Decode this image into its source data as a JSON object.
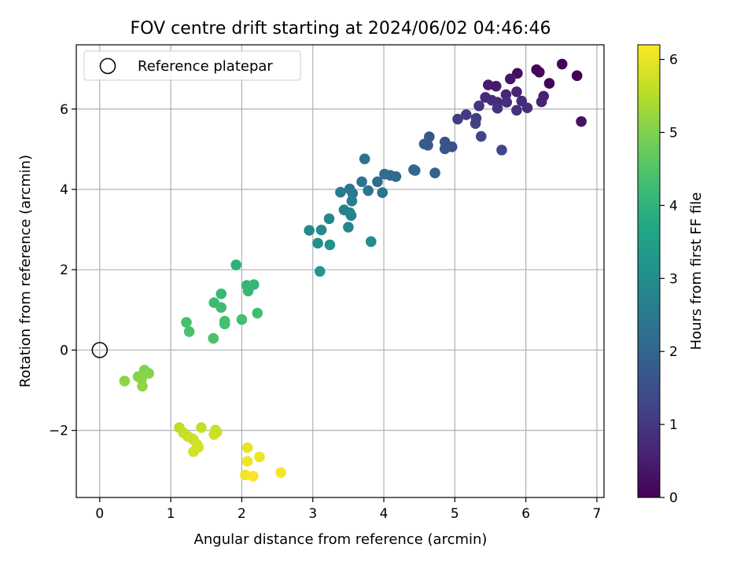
{
  "chart_data": {
    "type": "scatter",
    "title": "FOV centre drift starting at 2024/06/02 04:46:46",
    "xlabel": "Angular distance from reference (arcmin)",
    "ylabel": "Rotation from reference (arcmin)",
    "xlim": [
      -0.33,
      7.1
    ],
    "ylim": [
      -3.67,
      7.6
    ],
    "xticks": [
      0,
      1,
      2,
      3,
      4,
      5,
      6,
      7
    ],
    "yticks": [
      -2,
      0,
      2,
      4,
      6
    ],
    "ytick_labels": [
      "−2",
      "0",
      "2",
      "4",
      "6"
    ],
    "grid": true,
    "legend": {
      "placement": "top-left",
      "label": "Reference platepar"
    },
    "reference_point": {
      "x": 0,
      "y": 0
    },
    "colorbar": {
      "label": "Hours from first FF file",
      "range": [
        0,
        6.2
      ],
      "ticks": [
        0,
        1,
        2,
        3,
        4,
        5,
        6
      ],
      "colormap": "viridis"
    },
    "points": [
      [
        6.72,
        6.83,
        0.0
      ],
      [
        6.51,
        7.12,
        0.03
      ],
      [
        6.33,
        6.64,
        0.05
      ],
      [
        6.15,
        6.98,
        0.1
      ],
      [
        6.19,
        6.92,
        0.12
      ],
      [
        5.88,
        6.89,
        0.2
      ],
      [
        6.78,
        5.69,
        0.3
      ],
      [
        5.78,
        6.75,
        0.38
      ],
      [
        5.47,
        6.6,
        0.5
      ],
      [
        5.58,
        6.57,
        0.45
      ],
      [
        6.25,
        6.32,
        0.55
      ],
      [
        6.22,
        6.18,
        0.6
      ],
      [
        5.87,
        6.43,
        0.62
      ],
      [
        5.72,
        6.36,
        0.66
      ],
      [
        5.43,
        6.29,
        0.72
      ],
      [
        5.52,
        6.22,
        0.75
      ],
      [
        5.6,
        6.17,
        0.8
      ],
      [
        5.73,
        6.17,
        0.82
      ],
      [
        5.94,
        6.2,
        0.78
      ],
      [
        6.02,
        6.03,
        0.85
      ],
      [
        5.87,
        5.97,
        0.88
      ],
      [
        5.6,
        6.02,
        0.9
      ],
      [
        5.34,
        6.08,
        0.95
      ],
      [
        5.16,
        5.86,
        1.08
      ],
      [
        5.04,
        5.75,
        1.1
      ],
      [
        5.3,
        5.77,
        1.15
      ],
      [
        5.29,
        5.64,
        1.2
      ],
      [
        5.37,
        5.32,
        1.25
      ],
      [
        5.66,
        4.98,
        1.3
      ],
      [
        4.96,
        5.06,
        1.5
      ],
      [
        4.86,
        5.18,
        1.55
      ],
      [
        4.86,
        5.01,
        1.6
      ],
      [
        4.64,
        5.31,
        1.7
      ],
      [
        4.57,
        5.13,
        1.75
      ],
      [
        4.62,
        5.1,
        1.78
      ],
      [
        4.72,
        4.41,
        1.9
      ],
      [
        4.44,
        4.47,
        2.0
      ],
      [
        4.42,
        4.49,
        2.05
      ],
      [
        4.17,
        4.32,
        2.12
      ],
      [
        4.09,
        4.35,
        2.15
      ],
      [
        4.01,
        4.38,
        2.18
      ],
      [
        3.91,
        4.19,
        2.25
      ],
      [
        3.73,
        4.76,
        2.3
      ],
      [
        3.69,
        4.19,
        2.32
      ],
      [
        3.98,
        3.92,
        2.35
      ],
      [
        3.78,
        3.97,
        2.4
      ],
      [
        3.52,
        4.01,
        2.45
      ],
      [
        3.56,
        3.9,
        2.5
      ],
      [
        3.39,
        3.93,
        2.55
      ],
      [
        3.55,
        3.71,
        2.6
      ],
      [
        3.44,
        3.49,
        2.65
      ],
      [
        3.52,
        3.42,
        2.68
      ],
      [
        3.54,
        3.35,
        2.72
      ],
      [
        3.23,
        3.27,
        2.8
      ],
      [
        3.5,
        3.06,
        2.85
      ],
      [
        2.95,
        2.98,
        2.9
      ],
      [
        3.12,
        2.99,
        2.95
      ],
      [
        3.82,
        2.7,
        3.0
      ],
      [
        3.07,
        2.66,
        3.05
      ],
      [
        3.24,
        2.62,
        3.1
      ],
      [
        3.1,
        1.96,
        3.25
      ],
      [
        1.92,
        2.12,
        3.95
      ],
      [
        2.07,
        1.61,
        4.05
      ],
      [
        2.17,
        1.63,
        4.1
      ],
      [
        2.09,
        1.47,
        4.12
      ],
      [
        1.71,
        1.4,
        4.15
      ],
      [
        1.61,
        1.18,
        4.2
      ],
      [
        1.71,
        1.06,
        4.25
      ],
      [
        2.22,
        0.92,
        4.28
      ],
      [
        2.0,
        0.76,
        4.3
      ],
      [
        1.76,
        0.72,
        4.32
      ],
      [
        1.76,
        0.65,
        4.35
      ],
      [
        1.22,
        0.69,
        4.38
      ],
      [
        1.26,
        0.46,
        4.4
      ],
      [
        1.6,
        0.29,
        4.45
      ],
      [
        0.63,
        -0.5,
        5.0
      ],
      [
        0.66,
        -0.55,
        5.02
      ],
      [
        0.69,
        -0.58,
        5.05
      ],
      [
        0.54,
        -0.66,
        5.08
      ],
      [
        0.59,
        -0.72,
        5.1
      ],
      [
        0.35,
        -0.77,
        5.12
      ],
      [
        0.6,
        -0.9,
        5.15
      ],
      [
        1.12,
        -1.93,
        5.6
      ],
      [
        1.18,
        -2.06,
        5.62
      ],
      [
        1.43,
        -1.93,
        5.65
      ],
      [
        1.24,
        -2.15,
        5.68
      ],
      [
        1.32,
        -2.23,
        5.7
      ],
      [
        1.3,
        -2.2,
        5.72
      ],
      [
        1.37,
        -2.35,
        5.75
      ],
      [
        1.39,
        -2.42,
        5.78
      ],
      [
        1.32,
        -2.53,
        5.8
      ],
      [
        1.63,
        -1.99,
        5.68
      ],
      [
        1.65,
        -2.04,
        5.7
      ],
      [
        1.61,
        -2.1,
        5.72
      ],
      [
        2.08,
        -2.43,
        6.0
      ],
      [
        2.25,
        -2.66,
        6.05
      ],
      [
        2.08,
        -2.77,
        6.08
      ],
      [
        2.05,
        -3.11,
        6.1
      ],
      [
        2.16,
        -3.14,
        6.15
      ],
      [
        2.55,
        -3.05,
        6.12
      ]
    ]
  }
}
